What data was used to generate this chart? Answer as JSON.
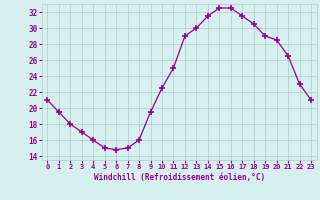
{
  "x": [
    0,
    1,
    2,
    3,
    4,
    5,
    6,
    7,
    8,
    9,
    10,
    11,
    12,
    13,
    14,
    15,
    16,
    17,
    18,
    19,
    20,
    21,
    22,
    23
  ],
  "y": [
    21,
    19.5,
    18,
    17,
    16,
    15,
    14.8,
    15,
    16,
    19.5,
    22.5,
    25,
    29,
    30,
    31.5,
    32.5,
    32.5,
    31.5,
    30.5,
    29,
    28.5,
    26.5,
    23,
    21
  ],
  "line_color": "#990099",
  "marker": "+",
  "marker_size": 4,
  "marker_lw": 1.2,
  "bg_color": "#d6efef",
  "grid_color": "#b2cccc",
  "xlabel": "Windchill (Refroidissement éolien,°C)",
  "xlabel_color": "#990099",
  "tick_color": "#990099",
  "ylim": [
    13.5,
    33.0
  ],
  "xlim": [
    -0.5,
    23.5
  ],
  "yticks": [
    14,
    16,
    18,
    20,
    22,
    24,
    26,
    28,
    30,
    32
  ],
  "xticks": [
    0,
    1,
    2,
    3,
    4,
    5,
    6,
    7,
    8,
    9,
    10,
    11,
    12,
    13,
    14,
    15,
    16,
    17,
    18,
    19,
    20,
    21,
    22,
    23
  ],
  "line_width": 0.9
}
